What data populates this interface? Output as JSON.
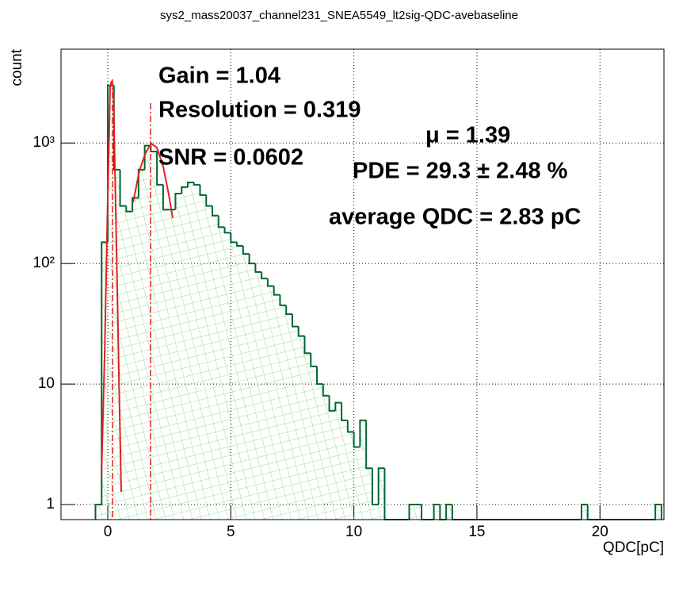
{
  "chart_data": {
    "type": "histogram",
    "title": "sys2_mass20037_channel231_SNEA5549_lt2sig-QDC-avebaseline",
    "x_label": "QDC[pC]",
    "y_label": "count",
    "bins": [
      -0.5,
      -0.25,
      0,
      0.25,
      0.5,
      0.75,
      1,
      1.25,
      1.5,
      1.75,
      2,
      2.25,
      2.5,
      2.75,
      3,
      3.25,
      3.5,
      3.75,
      4,
      4.25,
      4.5,
      4.75,
      5,
      5.25,
      5.5,
      5.75,
      6,
      6.25,
      6.5,
      6.75,
      7,
      7.25,
      7.5,
      7.75,
      8,
      8.25,
      8.5,
      8.75,
      9,
      9.25,
      9.5,
      9.75,
      10,
      10.25,
      10.5,
      10.75,
      11,
      11.25,
      11.5,
      11.75,
      12,
      12.25,
      12.5,
      12.75,
      13,
      13.25,
      13.5,
      13.75,
      14,
      14.25,
      14.5,
      14.75,
      15,
      15.25,
      15.5,
      15.75,
      16,
      16.25,
      16.5,
      16.75,
      17,
      17.25,
      17.5,
      17.75,
      18,
      18.25,
      18.5,
      18.75,
      19,
      19.25,
      19.5,
      19.75,
      20,
      20.25,
      20.5,
      20.75,
      21,
      21.25,
      21.5,
      21.75,
      22,
      22.25,
      22.5
    ],
    "values": [
      1,
      150,
      3000,
      600,
      300,
      270,
      350,
      600,
      950,
      850,
      450,
      280,
      280,
      380,
      430,
      470,
      450,
      370,
      300,
      250,
      200,
      180,
      150,
      140,
      120,
      100,
      85,
      75,
      65,
      55,
      45,
      38,
      30,
      25,
      18,
      14,
      10,
      8,
      6,
      7,
      5,
      4,
      3,
      5,
      2,
      1,
      2,
      0,
      0,
      0,
      0,
      1,
      1,
      0,
      0,
      1,
      0,
      1,
      0,
      0,
      0,
      0,
      0,
      0,
      0,
      0,
      0,
      0,
      0,
      0,
      0,
      0,
      0,
      0,
      0,
      0,
      0,
      0,
      0,
      1,
      0,
      0,
      0,
      0,
      0,
      0,
      0,
      0,
      0,
      0,
      0,
      1
    ],
    "color": "#006633",
    "fill_color": "#99dd99",
    "xlim": [
      -1.9,
      22.6
    ],
    "xticks": [
      0,
      5,
      10,
      15,
      20
    ],
    "ylim": [
      0.75,
      6000
    ],
    "log_y": true,
    "grid": true,
    "yticks": [
      1,
      10,
      {
        "value": 100,
        "label": "10²"
      },
      {
        "value": 1000,
        "label": "10³"
      }
    ],
    "annotations": [
      "Gain =  1.04",
      "Resolution = 0.319",
      "SNR = 0.0602",
      "μ =  1.39",
      "PDE =  29.3 ± 2.48 %",
      "average QDC =  2.83 pC"
    ]
  }
}
